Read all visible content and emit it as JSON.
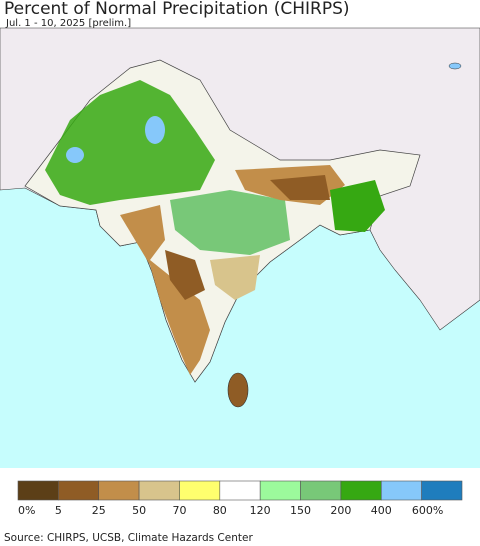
{
  "header": {
    "title": "Percent of Normal Precipitation (CHIRPS)",
    "subtitle": "Jul. 1 - 10, 2025 [prelim.]"
  },
  "legend": {
    "colors": [
      "#5c3f17",
      "#8f5c25",
      "#c28e4a",
      "#d8c48c",
      "#ffff6e",
      "#ffffff",
      "#9cfa9c",
      "#78c878",
      "#36a812",
      "#86c8fa",
      "#1f7dbd"
    ],
    "labels": [
      "0%",
      "5",
      "25",
      "50",
      "70",
      "80",
      "120",
      "150",
      "200",
      "400",
      "600%"
    ]
  },
  "source": "Source: CHIRPS, UCSB, Climate Hazards Center"
}
